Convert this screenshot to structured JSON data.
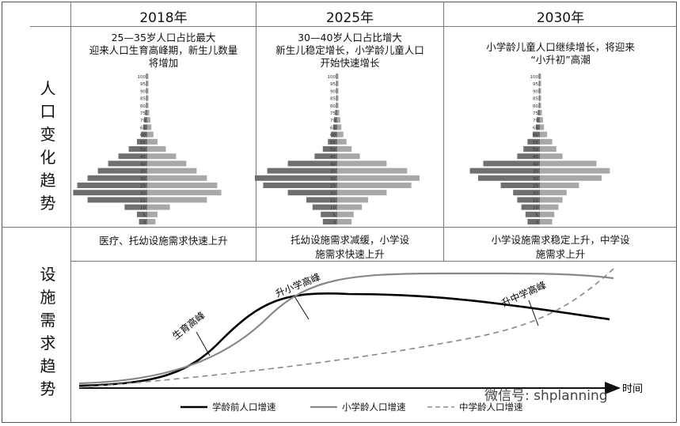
{
  "columns": [
    {
      "year": "2018年",
      "note": [
        "25—35岁人口占比最大",
        "迎来人口生育高峰期，新生儿数量",
        "将增加"
      ],
      "need": [
        "医疗、托幼设施需求快速上升"
      ]
    },
    {
      "year": "2025年",
      "note": [
        "30—40岁人口占比增大",
        "新生儿稳定增长，小学龄儿童人口",
        "开始快速增长"
      ],
      "need": [
        "托幼设施需求减缓，小学设",
        "施需求快速上升"
      ]
    },
    {
      "year": "2030年",
      "note": [
        "小学龄儿童人口继续增长，将迎来",
        "“小升初”高潮"
      ],
      "need": [
        "小学设施需求稳定上升，中学设",
        "施需求上升"
      ]
    }
  ],
  "row_labels": {
    "population": [
      "人",
      "口",
      "变",
      "化",
      "趋",
      "势"
    ],
    "facility": [
      "设",
      "施",
      "需",
      "求",
      "趋",
      "势"
    ]
  },
  "age_ticks": [
    "100",
    "95",
    "90",
    "85",
    "80",
    "75",
    "70",
    "65",
    "60",
    "55",
    "50",
    "45",
    "40",
    "35",
    "30",
    "25",
    "20",
    "15",
    "10",
    "5",
    "0"
  ],
  "pyramids": [
    [
      0,
      0,
      0,
      0,
      1,
      2,
      3,
      4,
      6,
      10,
      18,
      28,
      38,
      48,
      58,
      68,
      72,
      58,
      22,
      10,
      8
    ],
    [
      0,
      0,
      0,
      0,
      1,
      2,
      3,
      4,
      6,
      9,
      14,
      22,
      48,
      68,
      80,
      72,
      48,
      30,
      24,
      16,
      14
    ],
    [
      0,
      0,
      0,
      0,
      1,
      2,
      3,
      4,
      7,
      12,
      16,
      22,
      55,
      68,
      60,
      38,
      26,
      22,
      18,
      14,
      12
    ]
  ],
  "curve_labels": {
    "birth": "生育高峰",
    "primary": "升小学高峰",
    "middle": "升中学高峰"
  },
  "axis_label": "时间",
  "legend": [
    {
      "label": "学龄前人口增速",
      "style": "solid-black"
    },
    {
      "label": "小学龄人口增速",
      "style": "solid-gray"
    },
    {
      "label": "中学龄人口增速",
      "style": "dashed-gray"
    }
  ],
  "watermark": "微信号: shplanning"
}
